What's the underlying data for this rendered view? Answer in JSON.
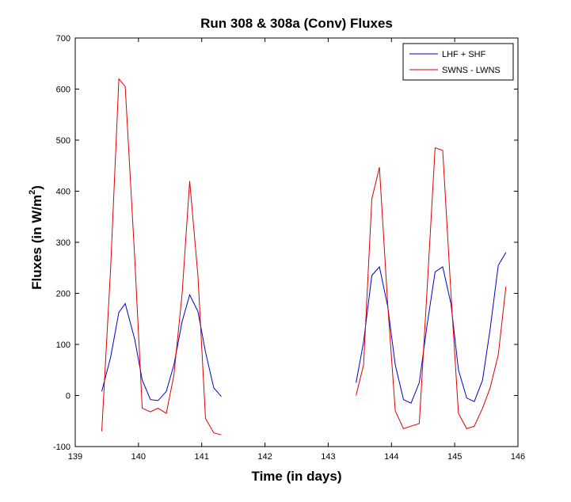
{
  "chart_data": {
    "type": "line",
    "title": "Run 308 & 308a (Conv) Fluxes",
    "xlabel": "Time (in days)",
    "ylabel": "Fluxes (in W/m",
    "ylabel_sup": "2",
    "ylabel_close": ")",
    "xlim": [
      139,
      146
    ],
    "ylim": [
      -100,
      700
    ],
    "xticks": [
      139,
      140,
      141,
      142,
      143,
      144,
      145,
      146
    ],
    "yticks": [
      -100,
      0,
      100,
      200,
      300,
      400,
      500,
      600,
      700
    ],
    "legend_position": "top-right",
    "series": [
      {
        "name": "LHF + SHF",
        "color": "#0000cc",
        "segments": [
          {
            "x": [
              139.42,
              139.56,
              139.69,
              139.79,
              139.94,
              140.06,
              140.19,
              140.31,
              140.44,
              140.56,
              140.69,
              140.81,
              140.94,
              141.06,
              141.19,
              141.31
            ],
            "y": [
              8,
              75,
              163,
              180,
              110,
              30,
              -8,
              -10,
              8,
              60,
              145,
              197,
              165,
              85,
              15,
              -2
            ]
          },
          {
            "x": [
              143.44,
              143.56,
              143.69,
              143.81,
              143.94,
              144.06,
              144.19,
              144.31,
              144.44,
              144.56,
              144.69,
              144.81,
              144.94,
              145.06,
              145.19,
              145.31,
              145.44,
              145.56,
              145.69,
              145.81
            ],
            "y": [
              25,
              105,
              235,
              252,
              175,
              60,
              -8,
              -15,
              25,
              135,
              242,
              252,
              180,
              50,
              -5,
              -12,
              30,
              130,
              255,
              280
            ]
          }
        ]
      },
      {
        "name": "SWNS - LWNS",
        "color": "#dd0000",
        "segments": [
          {
            "x": [
              139.42,
              139.56,
              139.69,
              139.79,
              139.94,
              140.06,
              140.19,
              140.31,
              140.44,
              140.56,
              140.69,
              140.81,
              140.94,
              141.06,
              141.19,
              141.31
            ],
            "y": [
              -70,
              250,
              620,
              605,
              270,
              -25,
              -32,
              -25,
              -35,
              40,
              200,
              420,
              235,
              -45,
              -73,
              -77
            ]
          },
          {
            "x": [
              143.44,
              143.56,
              143.69,
              143.81,
              143.94,
              144.06,
              144.19,
              144.31,
              144.44,
              144.56,
              144.69,
              144.81,
              144.94,
              145.06,
              145.19,
              145.31,
              145.44,
              145.56,
              145.69,
              145.81
            ],
            "y": [
              0,
              60,
              385,
              447,
              180,
              -30,
              -65,
              -60,
              -55,
              200,
              485,
              480,
              200,
              -35,
              -65,
              -60,
              -25,
              15,
              80,
              213
            ]
          }
        ]
      }
    ]
  }
}
